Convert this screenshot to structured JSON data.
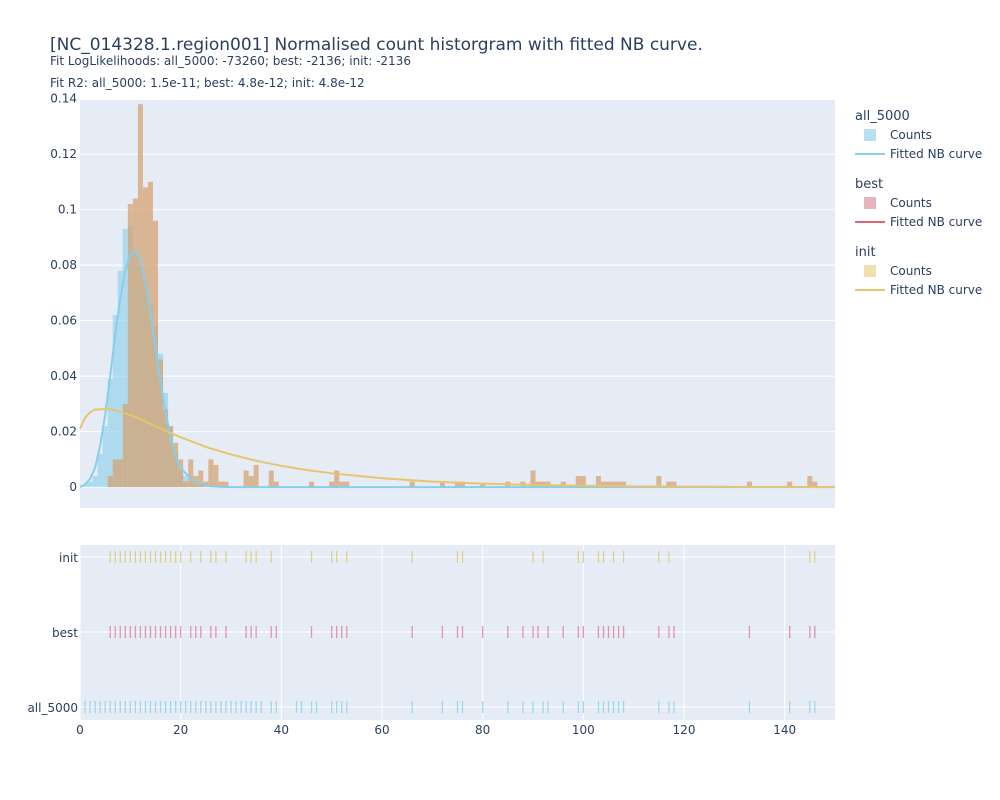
{
  "chart_data": [
    {
      "type": "bar",
      "title": "[NC_014328.1.region001] Normalised count historgram with fitted NB curve.",
      "subtitle_1": "Fit LogLikelihoods: all_5000: -73260; best: -2136; init: -2136",
      "subtitle_2": "Fit R2: all_5000: 1.5e-11; best: 4.8e-12; init: 4.8e-12",
      "xlim": [
        0,
        150
      ],
      "ylim": [
        -0.0075,
        0.1395
      ],
      "y_ticks": [
        0,
        0.02,
        0.04,
        0.06,
        0.08,
        0.1,
        0.12,
        0.14
      ],
      "y_tick_labels": [
        "0",
        "0.02",
        "0.04",
        "0.06",
        "0.08",
        "0.1",
        "0.12",
        "0.14"
      ],
      "grid": true,
      "legend_position": "right",
      "series": [
        {
          "group": "all_5000",
          "name": "Counts",
          "color": "#87ceeb",
          "bars": [
            [
              1,
              0.001
            ],
            [
              2,
              0.002
            ],
            [
              3,
              0.004
            ],
            [
              4,
              0.012
            ],
            [
              5,
              0.022
            ],
            [
              6,
              0.039
            ],
            [
              7,
              0.062
            ],
            [
              8,
              0.078
            ],
            [
              9,
              0.093
            ],
            [
              10,
              0.094
            ],
            [
              11,
              0.085
            ],
            [
              12,
              0.08
            ],
            [
              13,
              0.074
            ],
            [
              14,
              0.066
            ],
            [
              15,
              0.058
            ],
            [
              16,
              0.048
            ],
            [
              17,
              0.034
            ],
            [
              18,
              0.022
            ],
            [
              19,
              0.012
            ],
            [
              20,
              0.006
            ],
            [
              21,
              0.004
            ],
            [
              22,
              0.002
            ],
            [
              23,
              0.001
            ],
            [
              24,
              0.001
            ]
          ]
        },
        {
          "group": "all_5000",
          "name": "Fitted NB curve",
          "color": "#87ceeb",
          "points": [
            [
              0,
              0.0
            ],
            [
              1,
              0.001
            ],
            [
              2,
              0.003
            ],
            [
              3,
              0.007
            ],
            [
              4,
              0.015
            ],
            [
              5,
              0.026
            ],
            [
              6,
              0.04
            ],
            [
              7,
              0.055
            ],
            [
              8,
              0.068
            ],
            [
              9,
              0.078
            ],
            [
              10,
              0.084
            ],
            [
              11,
              0.085
            ],
            [
              12,
              0.082
            ],
            [
              13,
              0.074
            ],
            [
              14,
              0.063
            ],
            [
              15,
              0.05
            ],
            [
              16,
              0.038
            ],
            [
              17,
              0.027
            ],
            [
              18,
              0.018
            ],
            [
              19,
              0.011
            ],
            [
              20,
              0.007
            ],
            [
              22,
              0.003
            ],
            [
              24,
              0.001
            ],
            [
              26,
              0.0003
            ],
            [
              28,
              0.0001
            ],
            [
              30,
              0.0
            ],
            [
              150,
              0.0
            ]
          ]
        },
        {
          "group": "best",
          "name": "Counts",
          "color": "#e5a6b0",
          "bars": []
        },
        {
          "group": "best",
          "name": "Fitted NB curve",
          "color": "#d9667a",
          "points": []
        },
        {
          "group": "init",
          "name": "Counts",
          "color": "#d4a373",
          "bars": [
            [
              6,
              0.004
            ],
            [
              7,
              0.01
            ],
            [
              8,
              0.01
            ],
            [
              9,
              0.03
            ],
            [
              10,
              0.102
            ],
            [
              11,
              0.104
            ],
            [
              12,
              0.138
            ],
            [
              13,
              0.108
            ],
            [
              14,
              0.11
            ],
            [
              15,
              0.096
            ],
            [
              16,
              0.046
            ],
            [
              17,
              0.028
            ],
            [
              18,
              0.022
            ],
            [
              19,
              0.016
            ],
            [
              20,
              0.01
            ],
            [
              21,
              0.002
            ],
            [
              22,
              0.01
            ],
            [
              23,
              0.004
            ],
            [
              24,
              0.006
            ],
            [
              25,
              0.002
            ],
            [
              26,
              0.01
            ],
            [
              27,
              0.008
            ],
            [
              28,
              0.002
            ],
            [
              29,
              0.002
            ],
            [
              33,
              0.006
            ],
            [
              34,
              0.004
            ],
            [
              35,
              0.008
            ],
            [
              38,
              0.006
            ],
            [
              39,
              0.002
            ],
            [
              46,
              0.002
            ],
            [
              50,
              0.002
            ],
            [
              51,
              0.006
            ],
            [
              52,
              0.002
            ],
            [
              53,
              0.002
            ],
            [
              66,
              0.002
            ],
            [
              72,
              0.002
            ],
            [
              75,
              0.002
            ],
            [
              76,
              0.002
            ],
            [
              80,
              0.001
            ],
            [
              85,
              0.002
            ],
            [
              88,
              0.002
            ],
            [
              90,
              0.006
            ],
            [
              91,
              0.002
            ],
            [
              92,
              0.002
            ],
            [
              93,
              0.002
            ],
            [
              96,
              0.002
            ],
            [
              99,
              0.004
            ],
            [
              100,
              0.004
            ],
            [
              103,
              0.004
            ],
            [
              104,
              0.002
            ],
            [
              105,
              0.002
            ],
            [
              106,
              0.002
            ],
            [
              107,
              0.002
            ],
            [
              108,
              0.002
            ],
            [
              115,
              0.004
            ],
            [
              117,
              0.002
            ],
            [
              118,
              0.002
            ],
            [
              133,
              0.002
            ],
            [
              141,
              0.002
            ],
            [
              145,
              0.004
            ],
            [
              146,
              0.002
            ]
          ]
        },
        {
          "group": "init",
          "name": "Fitted NB curve",
          "color": "#e6c56e",
          "points": [
            [
              0,
              0.021
            ],
            [
              1,
              0.025
            ],
            [
              2,
              0.027
            ],
            [
              3,
              0.028
            ],
            [
              4,
              0.028
            ],
            [
              5,
              0.0284
            ],
            [
              6,
              0.028
            ],
            [
              7,
              0.0277
            ],
            [
              8,
              0.0272
            ],
            [
              10,
              0.026
            ],
            [
              12,
              0.0245
            ],
            [
              15,
              0.022
            ],
            [
              18,
              0.0195
            ],
            [
              20,
              0.018
            ],
            [
              25,
              0.0145
            ],
            [
              30,
              0.0118
            ],
            [
              35,
              0.0095
            ],
            [
              40,
              0.0077
            ],
            [
              45,
              0.0062
            ],
            [
              50,
              0.005
            ],
            [
              60,
              0.0032
            ],
            [
              70,
              0.002
            ],
            [
              80,
              0.0013
            ],
            [
              90,
              0.0008
            ],
            [
              100,
              0.0005
            ],
            [
              110,
              0.0003
            ],
            [
              120,
              0.0002
            ],
            [
              130,
              0.0001
            ],
            [
              140,
              0.0001
            ],
            [
              150,
              0.0
            ]
          ]
        }
      ]
    },
    {
      "type": "scatter",
      "xlim": [
        0,
        150
      ],
      "x_ticks": [
        0,
        20,
        40,
        60,
        80,
        100,
        120,
        140
      ],
      "x_tick_labels": [
        "0",
        "20",
        "40",
        "60",
        "80",
        "100",
        "120",
        "140"
      ],
      "categories": [
        "init",
        "best",
        "all_5000"
      ],
      "rugs": [
        {
          "name": "init",
          "color": "#d8c86a",
          "x": [
            6,
            7,
            8,
            9,
            10,
            11,
            12,
            13,
            14,
            15,
            16,
            17,
            18,
            19,
            20,
            22,
            24,
            26,
            27,
            29,
            33,
            34,
            35,
            38,
            46,
            50,
            51,
            53,
            66,
            75,
            76,
            90,
            92,
            99,
            100,
            103,
            104,
            106,
            108,
            115,
            117,
            145,
            146
          ]
        },
        {
          "name": "best",
          "color": "#e07890",
          "x": [
            6,
            7,
            8,
            9,
            10,
            11,
            12,
            13,
            14,
            15,
            16,
            17,
            18,
            19,
            20,
            22,
            23,
            24,
            26,
            27,
            29,
            33,
            34,
            35,
            38,
            39,
            46,
            50,
            51,
            52,
            53,
            66,
            72,
            75,
            76,
            80,
            85,
            88,
            90,
            91,
            93,
            96,
            99,
            100,
            103,
            104,
            105,
            106,
            107,
            108,
            115,
            117,
            118,
            133,
            141,
            145,
            146
          ]
        },
        {
          "name": "all_5000",
          "color": "#87ceeb",
          "x": [
            1,
            2,
            3,
            4,
            5,
            6,
            7,
            8,
            9,
            10,
            11,
            12,
            13,
            14,
            15,
            16,
            17,
            18,
            19,
            20,
            21,
            22,
            23,
            24,
            25,
            26,
            27,
            28,
            29,
            30,
            31,
            32,
            33,
            34,
            35,
            36,
            38,
            39,
            43,
            44,
            46,
            47,
            50,
            51,
            52,
            53,
            66,
            72,
            75,
            76,
            80,
            85,
            88,
            90,
            92,
            93,
            96,
            99,
            100,
            103,
            104,
            105,
            106,
            107,
            108,
            115,
            117,
            118,
            133,
            141,
            145,
            146
          ]
        }
      ]
    }
  ],
  "legend": {
    "groups": [
      {
        "title": "all_5000",
        "items": [
          {
            "label": "Counts",
            "kind": "box",
            "color": "#b8e0f3"
          },
          {
            "label": "Fitted NB curve",
            "kind": "line",
            "color": "#87ceeb"
          }
        ]
      },
      {
        "title": "best",
        "items": [
          {
            "label": "Counts",
            "kind": "box",
            "color": "#e8b4bc"
          },
          {
            "label": "Fitted NB curve",
            "kind": "line",
            "color": "#d9667a"
          }
        ]
      },
      {
        "title": "init",
        "items": [
          {
            "label": "Counts",
            "kind": "box",
            "color": "#f0e0b0"
          },
          {
            "label": "Fitted NB curve",
            "kind": "line",
            "color": "#e6c56e"
          }
        ]
      }
    ]
  }
}
